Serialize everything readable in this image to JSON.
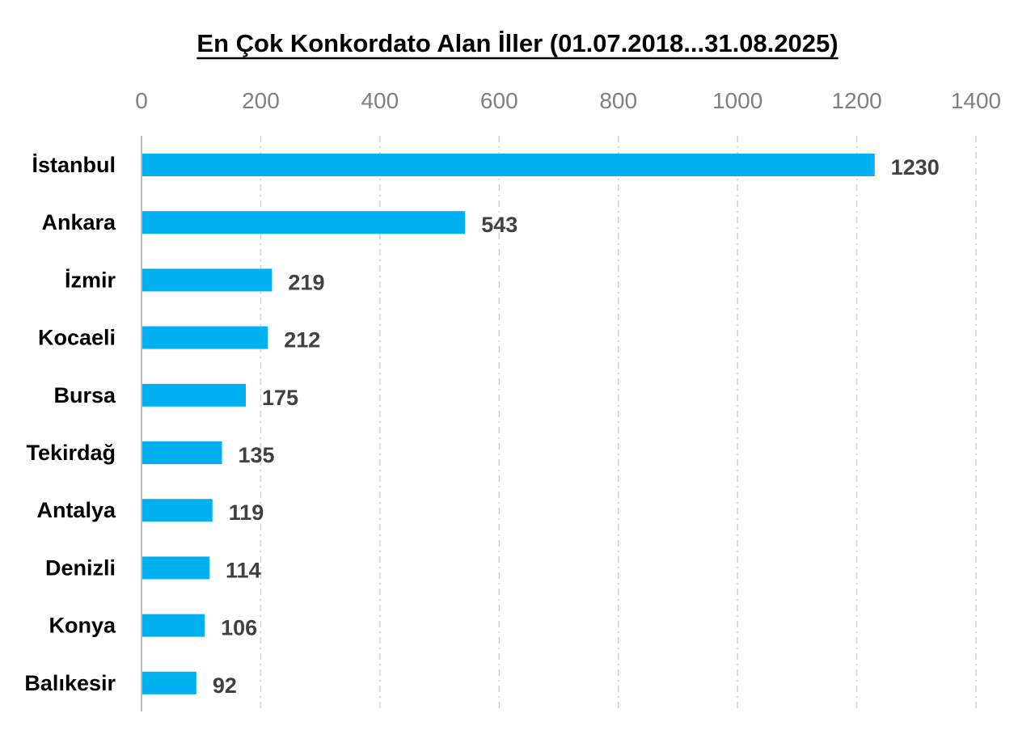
{
  "chart_data": {
    "type": "bar",
    "orientation": "horizontal",
    "title": "En Çok Konkordato Alan İller (01.07.2018...31.08.2025)",
    "categories": [
      "İstanbul",
      "Ankara",
      "İzmir",
      "Kocaeli",
      "Bursa",
      "Tekirdağ",
      "Antalya",
      "Denizli",
      "Konya",
      "Balıkesir"
    ],
    "values": [
      1230,
      543,
      219,
      212,
      175,
      135,
      119,
      114,
      106,
      92
    ],
    "data_labels": [
      "1230",
      "543",
      "219",
      "212",
      "175",
      "135",
      "119",
      "114",
      "106",
      "92"
    ],
    "xlim": [
      0,
      1400
    ],
    "x_ticks": [
      0,
      200,
      400,
      600,
      800,
      1000,
      1200,
      1400
    ],
    "x_tick_labels": [
      "0",
      "200",
      "400",
      "600",
      "800",
      "1000",
      "1200",
      "1400"
    ],
    "x_axis_position": "top",
    "grid": true,
    "legend": "none",
    "bar_color": "#00b0f0",
    "title_color": "#000000",
    "tick_color": "#7f7f7f",
    "category_color": "#000000",
    "value_label_color": "#404040"
  }
}
